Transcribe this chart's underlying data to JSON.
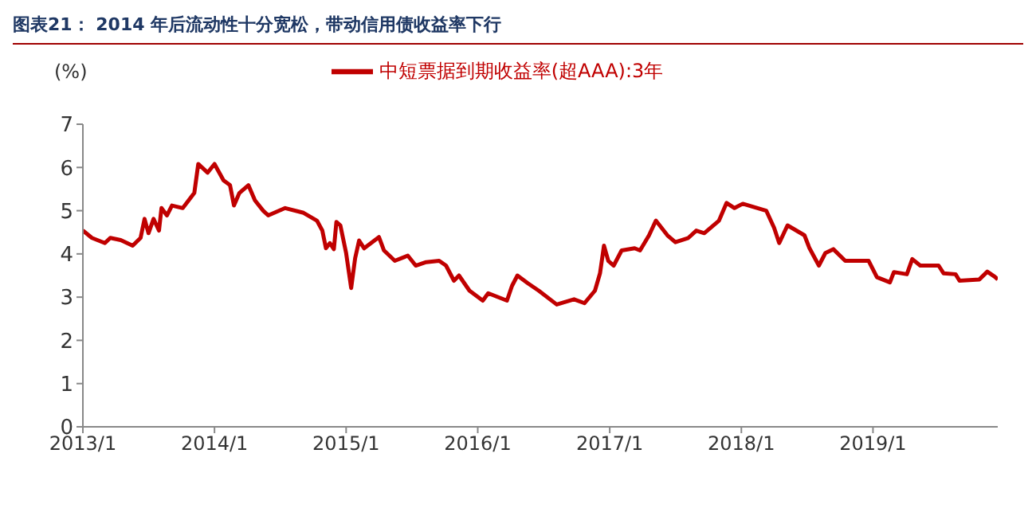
{
  "chart_data": {
    "type": "line",
    "title": "图表21： 2014 年后流动性十分宽松，带动信用债收益率下行",
    "ylabel": "(%)",
    "x": [
      "2013-01-01",
      "2013-01-26",
      "2013-03-03",
      "2013-03-18",
      "2013-04-16",
      "2013-05-19",
      "2013-06-10",
      "2013-06-21",
      "2013-07-02",
      "2013-07-16",
      "2013-07-31",
      "2013-08-07",
      "2013-08-22",
      "2013-09-05",
      "2013-10-05",
      "2013-11-06",
      "2013-11-17",
      "2013-12-13",
      "2014-01-01",
      "2014-01-26",
      "2014-02-13",
      "2014-02-24",
      "2014-03-11",
      "2014-04-05",
      "2014-04-23",
      "2014-05-16",
      "2014-05-30",
      "2014-07-16",
      "2014-09-05",
      "2014-10-12",
      "2014-10-27",
      "2014-11-06",
      "2014-11-17",
      "2014-11-28",
      "2014-12-05",
      "2014-12-16",
      "2015-01-01",
      "2015-01-15",
      "2015-01-26",
      "2015-02-06",
      "2015-02-20",
      "2015-04-02",
      "2015-04-16",
      "2015-05-16",
      "2015-06-21",
      "2015-07-13",
      "2015-08-11",
      "2015-09-16",
      "2015-10-05",
      "2015-10-27",
      "2015-11-10",
      "2015-12-09",
      "2016-01-15",
      "2016-01-30",
      "2016-03-22",
      "2016-04-05",
      "2016-04-20",
      "2016-05-19",
      "2016-06-18",
      "2016-08-07",
      "2016-09-24",
      "2016-10-23",
      "2016-11-21",
      "2016-12-05",
      "2016-12-16",
      "2016-12-28",
      "2017-01-12",
      "2017-02-03",
      "2017-03-11",
      "2017-03-26",
      "2017-04-20",
      "2017-05-09",
      "2017-06-10",
      "2017-07-02",
      "2017-08-07",
      "2017-08-29",
      "2017-09-20",
      "2017-10-31",
      "2017-11-21",
      "2017-12-13",
      "2018-01-05",
      "2018-03-11",
      "2018-04-02",
      "2018-04-16",
      "2018-05-09",
      "2018-06-25",
      "2018-07-09",
      "2018-08-04",
      "2018-08-22",
      "2018-09-13",
      "2018-10-16",
      "2018-12-20",
      "2019-01-12",
      "2019-02-17",
      "2019-02-28",
      "2019-04-05",
      "2019-04-20",
      "2019-05-12",
      "2019-07-02",
      "2019-07-16",
      "2019-08-18",
      "2019-08-29",
      "2019-10-23",
      "2019-11-14",
      "2019-12-05",
      "2019-12-13"
    ],
    "series": [
      {
        "name": "中短票据到期收益率(超AAA):3年",
        "color": "#c00000",
        "values": [
          4.54,
          4.37,
          4.25,
          4.37,
          4.32,
          4.19,
          4.37,
          4.81,
          4.48,
          4.81,
          4.54,
          5.06,
          4.89,
          5.12,
          5.06,
          5.41,
          6.08,
          5.88,
          6.08,
          5.7,
          5.59,
          5.12,
          5.41,
          5.59,
          5.24,
          5.0,
          4.89,
          5.06,
          4.95,
          4.77,
          4.54,
          4.13,
          4.25,
          4.11,
          4.74,
          4.66,
          4.02,
          3.21,
          3.9,
          4.31,
          4.13,
          4.39,
          4.08,
          3.84,
          3.96,
          3.73,
          3.81,
          3.84,
          3.73,
          3.38,
          3.5,
          3.15,
          2.92,
          3.09,
          2.92,
          3.26,
          3.5,
          3.32,
          3.15,
          2.83,
          2.95,
          2.86,
          3.15,
          3.55,
          4.19,
          3.84,
          3.73,
          4.08,
          4.13,
          4.08,
          4.43,
          4.77,
          4.43,
          4.27,
          4.37,
          4.54,
          4.48,
          4.77,
          5.18,
          5.06,
          5.16,
          5.0,
          4.6,
          4.25,
          4.66,
          4.43,
          4.13,
          3.73,
          4.02,
          4.11,
          3.84,
          3.84,
          3.46,
          3.34,
          3.58,
          3.53,
          3.88,
          3.73,
          3.73,
          3.55,
          3.53,
          3.38,
          3.41,
          3.59,
          3.47,
          3.41
        ]
      }
    ],
    "xlim": [
      "2013-01-01",
      "2019-12-13"
    ],
    "xticks": [
      {
        "value": "2013-01",
        "label": "2013/1"
      },
      {
        "value": "2014-01",
        "label": "2014/1"
      },
      {
        "value": "2015-01",
        "label": "2015/1"
      },
      {
        "value": "2016-01",
        "label": "2016/1"
      },
      {
        "value": "2017-01",
        "label": "2017/1"
      },
      {
        "value": "2018-01",
        "label": "2018/1"
      },
      {
        "value": "2019-01",
        "label": "2019/1"
      }
    ],
    "ylim": [
      0,
      7
    ],
    "yticks": [
      0,
      1,
      2,
      3,
      4,
      5,
      6,
      7
    ],
    "legend": "top",
    "grid": false,
    "marker": "none",
    "line_style": "solid"
  }
}
